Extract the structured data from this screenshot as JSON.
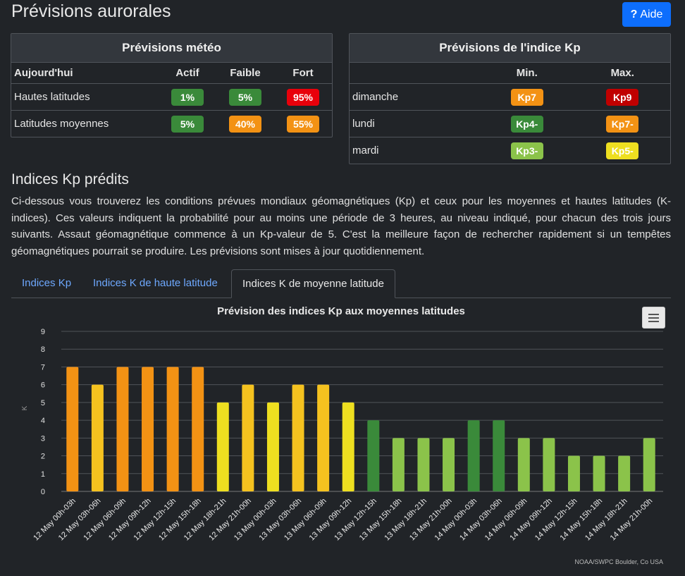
{
  "page": {
    "title": "Prévisions aurorales",
    "help_label": "Aide"
  },
  "meteo": {
    "title": "Prévisions météo",
    "headers": [
      "Aujourd'hui",
      "Actif",
      "Faible",
      "Fort"
    ],
    "rows": [
      {
        "label": "Hautes latitudes",
        "values": [
          "1%",
          "5%",
          "95%"
        ],
        "colors": [
          "#3a8a3a",
          "#3a8a3a",
          "#e8000b"
        ]
      },
      {
        "label": "Latitudes moyennes",
        "values": [
          "5%",
          "40%",
          "55%"
        ],
        "colors": [
          "#3a8a3a",
          "#f39214",
          "#f39214"
        ]
      }
    ]
  },
  "kp_forecast": {
    "title": "Prévisions de l'indice Kp",
    "headers": [
      "",
      "Min.",
      "Max."
    ],
    "rows": [
      {
        "label": "dimanche",
        "values": [
          "Kp7",
          "Kp9"
        ],
        "colors": [
          "#f39214",
          "#c00000"
        ]
      },
      {
        "label": "lundi",
        "values": [
          "Kp4-",
          "Kp7-"
        ],
        "colors": [
          "#3a8a3a",
          "#f39214"
        ]
      },
      {
        "label": "mardi",
        "values": [
          "Kp3-",
          "Kp5-"
        ],
        "colors": [
          "#8bc34a",
          "#eedf20"
        ]
      }
    ]
  },
  "section": {
    "title": "Indices Kp prédits",
    "description": "Ci-dessous vous trouverez les conditions prévues mondiaux géomagnétiques (Kp) et ceux pour les moyennes et hautes latitudes (K-indices). Ces valeurs indiquent la probabilité pour au moins une période de 3 heures, au niveau indiqué, pour chacun des trois jours suivants. Assaut géomagnétique commence à un Kp-valeur de 5. C'est la meilleure façon de rechercher rapidement si un tempêtes géomagnétiques pourrait se produire. Les prévisions sont mises à jour quotidiennement."
  },
  "tabs": [
    {
      "label": "Indices Kp",
      "active": false
    },
    {
      "label": "Indices K de haute latitude",
      "active": false
    },
    {
      "label": "Indices K de moyenne latitude",
      "active": true
    }
  ],
  "chart_data": {
    "type": "bar",
    "title": "Prévision des indices Kp aux moyennes latitudes",
    "ylabel": "K",
    "xlabel": "",
    "ylim": [
      0,
      9
    ],
    "yticks": [
      0,
      1,
      2,
      3,
      4,
      5,
      6,
      7,
      8,
      9
    ],
    "grid": true,
    "credit": "NOAA/SWPC Boulder, Co USA",
    "categories": [
      "12 May 00h-03h",
      "12 May 03h-06h",
      "12 May 06h-09h",
      "12 May 09h-12h",
      "12 May 12h-15h",
      "12 May 15h-18h",
      "12 May 18h-21h",
      "12 May 21h-00h",
      "13 May 00h-03h",
      "13 May 03h-06h",
      "13 May 06h-09h",
      "13 May 09h-12h",
      "13 May 12h-15h",
      "13 May 15h-18h",
      "13 May 18h-21h",
      "13 May 21h-00h",
      "14 May 00h-03h",
      "14 May 03h-06h",
      "14 May 06h-09h",
      "14 May 09h-12h",
      "14 May 12h-15h",
      "14 May 15h-18h",
      "14 May 18h-21h",
      "14 May 21h-00h"
    ],
    "values": [
      7,
      6,
      7,
      7,
      7,
      7,
      5,
      6,
      5,
      6,
      6,
      5,
      4,
      3,
      3,
      3,
      4,
      4,
      3,
      3,
      2,
      2,
      2,
      3
    ],
    "colors": [
      "#f39214",
      "#f5c21f",
      "#f39214",
      "#f39214",
      "#f39214",
      "#f39214",
      "#eedf20",
      "#f5c21f",
      "#eedf20",
      "#f5c21f",
      "#f5c21f",
      "#eedf20",
      "#3a8a3a",
      "#8bc34a",
      "#8bc34a",
      "#8bc34a",
      "#3a8a3a",
      "#3a8a3a",
      "#8bc34a",
      "#8bc34a",
      "#8bc34a",
      "#8bc34a",
      "#8bc34a",
      "#8bc34a"
    ]
  }
}
